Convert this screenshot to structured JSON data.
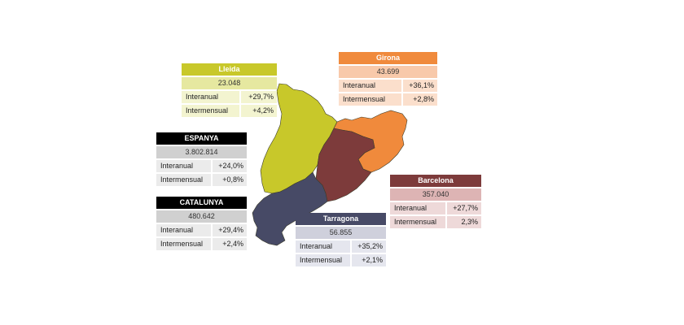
{
  "colors": {
    "lleida": "#c8c82a",
    "girona": "#f08a3c",
    "barcelona": "#7d3b3b",
    "tarragona": "#474a66",
    "espanya": "#000000",
    "catalunya": "#000000"
  },
  "labels": {
    "interanual": "Interanual",
    "intermensual": "Intermensual"
  },
  "regions": {
    "lleida": {
      "name": "Lleida",
      "value": "23.048",
      "interanual": "+29,7%",
      "intermensual": "+4,2%"
    },
    "girona": {
      "name": "Girona",
      "value": "43.699",
      "interanual": "+36,1%",
      "intermensual": "+2,8%"
    },
    "barcelona": {
      "name": "Barcelona",
      "value": "357.040",
      "interanual": "+27,7%",
      "intermensual": "2,3%"
    },
    "tarragona": {
      "name": "Tarragona",
      "value": "56.855",
      "interanual": "+35,2%",
      "intermensual": "+2,1%"
    }
  },
  "totals": {
    "espanya": {
      "name": "ESPANYA",
      "value": "3.802.814",
      "interanual": "+24,0%",
      "intermensual": "+0,8%"
    },
    "catalunya": {
      "name": "CATALUNYA",
      "value": "480.642",
      "interanual": "+29,4%",
      "intermensual": "+2,4%"
    }
  }
}
